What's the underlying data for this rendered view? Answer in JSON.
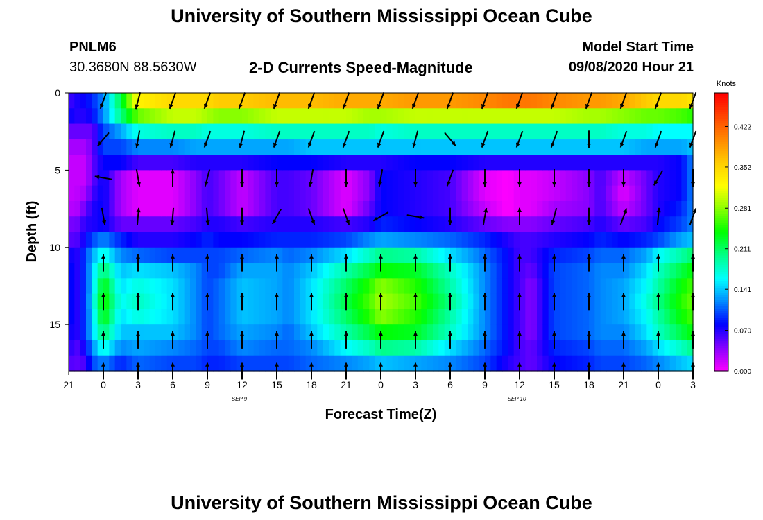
{
  "header": {
    "title": "University of Southern Mississippi Ocean Cube",
    "station_id": "PNLM6",
    "station_coords": "30.3680N 88.5630W",
    "chart_title": "2-D Currents Speed-Magnitude",
    "start_time_label": "Model Start Time",
    "start_time_value": "09/08/2020 Hour 21"
  },
  "footer": {
    "title": "University of Southern Mississippi Ocean Cube"
  },
  "chart_data": {
    "type": "heatmap",
    "xlabel": "Forecast Time(Z)",
    "ylabel": "Depth (ft)",
    "x_tick_labels": [
      "21",
      "0",
      "3",
      "6",
      "9",
      "12",
      "15",
      "18",
      "21",
      "0",
      "3",
      "6",
      "9",
      "12",
      "15",
      "18",
      "21",
      "0",
      "3"
    ],
    "date_labels": [
      {
        "label": "SEP 9",
        "at_tick_index": 5
      },
      {
        "label": "SEP 10",
        "at_tick_index": 13
      }
    ],
    "x_range_hours": [
      0,
      54
    ],
    "y_ticks": [
      0,
      5,
      10,
      15
    ],
    "ylim": [
      0,
      18
    ],
    "y_inverted": true,
    "colorbar": {
      "unit": "Knots",
      "ticks": [
        "0.000",
        "0.070",
        "0.141",
        "0.211",
        "0.281",
        "0.352",
        "0.422"
      ],
      "range": [
        0,
        0.48
      ],
      "colors": [
        "#ff00ff",
        "#8800ff",
        "#0000ff",
        "#0088ff",
        "#00ffff",
        "#00ff88",
        "#00ff00",
        "#88ff00",
        "#ffff00",
        "#ffcc00",
        "#ff8800",
        "#ff4400",
        "#ff0000"
      ]
    },
    "speed_profiles": {
      "hours": [
        0,
        0.5,
        1.5,
        2.0,
        3.0,
        4.5,
        6,
        9,
        11,
        12,
        13,
        15,
        18,
        19,
        21,
        24,
        26,
        27,
        30,
        33,
        36,
        38,
        39,
        40,
        42,
        45,
        46,
        48,
        50,
        51,
        53,
        54
      ],
      "depths": [
        0.5,
        1.5,
        2.5,
        3.5,
        4.5,
        5.5,
        6.5,
        7.5,
        8.5,
        9.5,
        10.5,
        11.5,
        12.5,
        13.5,
        14.5,
        15.5,
        16.5,
        17.5
      ],
      "columns": [
        [
          0.06,
          0.08,
          0.05,
          0.03,
          0.02,
          0.02,
          0.02,
          0.03,
          0.05,
          0.06,
          0.09,
          0.1,
          0.1,
          0.1,
          0.1,
          0.09,
          0.08,
          0.06
        ],
        [
          0.07,
          0.07,
          0.05,
          0.03,
          0.02,
          0.02,
          0.02,
          0.02,
          0.04,
          0.05,
          0.06,
          0.06,
          0.06,
          0.06,
          0.06,
          0.06,
          0.05,
          0.05
        ],
        [
          0.08,
          0.07,
          0.05,
          0.03,
          0.02,
          0.02,
          0.03,
          0.05,
          0.07,
          0.08,
          0.1,
          0.1,
          0.1,
          0.1,
          0.1,
          0.1,
          0.08,
          0.06
        ],
        [
          0.09,
          0.08,
          0.05,
          0.05,
          0.05,
          0.05,
          0.06,
          0.07,
          0.07,
          0.1,
          0.13,
          0.14,
          0.14,
          0.15,
          0.14,
          0.14,
          0.12,
          0.1
        ],
        [
          0.12,
          0.12,
          0.1,
          0.1,
          0.08,
          0.08,
          0.08,
          0.08,
          0.08,
          0.12,
          0.17,
          0.21,
          0.24,
          0.25,
          0.24,
          0.21,
          0.17,
          0.12
        ],
        [
          0.22,
          0.2,
          0.13,
          0.1,
          0.08,
          0.03,
          0.03,
          0.03,
          0.05,
          0.09,
          0.12,
          0.14,
          0.15,
          0.16,
          0.15,
          0.14,
          0.12,
          0.09
        ],
        [
          0.33,
          0.27,
          0.17,
          0.12,
          0.06,
          0.01,
          0.01,
          0.01,
          0.05,
          0.07,
          0.11,
          0.15,
          0.17,
          0.18,
          0.17,
          0.14,
          0.13,
          0.11
        ],
        [
          0.35,
          0.3,
          0.18,
          0.12,
          0.06,
          0.01,
          0.01,
          0.01,
          0.05,
          0.07,
          0.1,
          0.14,
          0.15,
          0.15,
          0.15,
          0.14,
          0.12,
          0.1
        ],
        [
          0.35,
          0.3,
          0.18,
          0.13,
          0.07,
          0.04,
          0.04,
          0.04,
          0.06,
          0.08,
          0.1,
          0.12,
          0.12,
          0.12,
          0.12,
          0.12,
          0.11,
          0.1
        ],
        [
          0.35,
          0.29,
          0.17,
          0.13,
          0.07,
          0.06,
          0.06,
          0.06,
          0.07,
          0.09,
          0.1,
          0.1,
          0.1,
          0.1,
          0.1,
          0.1,
          0.1,
          0.09
        ],
        [
          0.36,
          0.28,
          0.17,
          0.13,
          0.07,
          0.05,
          0.05,
          0.05,
          0.07,
          0.08,
          0.1,
          0.1,
          0.11,
          0.11,
          0.11,
          0.11,
          0.1,
          0.09
        ],
        [
          0.36,
          0.28,
          0.17,
          0.13,
          0.07,
          0.02,
          0.02,
          0.02,
          0.06,
          0.08,
          0.11,
          0.13,
          0.14,
          0.14,
          0.14,
          0.13,
          0.12,
          0.1
        ],
        [
          0.37,
          0.3,
          0.18,
          0.13,
          0.08,
          0.06,
          0.06,
          0.06,
          0.07,
          0.09,
          0.12,
          0.13,
          0.13,
          0.13,
          0.13,
          0.12,
          0.11,
          0.1
        ],
        [
          0.37,
          0.3,
          0.18,
          0.13,
          0.08,
          0.06,
          0.06,
          0.06,
          0.07,
          0.09,
          0.11,
          0.12,
          0.12,
          0.12,
          0.12,
          0.11,
          0.11,
          0.1
        ],
        [
          0.37,
          0.3,
          0.18,
          0.14,
          0.08,
          0.05,
          0.05,
          0.05,
          0.07,
          0.09,
          0.12,
          0.14,
          0.15,
          0.15,
          0.15,
          0.14,
          0.12,
          0.11
        ],
        [
          0.38,
          0.3,
          0.18,
          0.14,
          0.07,
          0.01,
          0.01,
          0.01,
          0.06,
          0.1,
          0.15,
          0.19,
          0.21,
          0.22,
          0.21,
          0.19,
          0.16,
          0.12
        ],
        [
          0.38,
          0.29,
          0.18,
          0.14,
          0.07,
          0.04,
          0.04,
          0.05,
          0.07,
          0.12,
          0.18,
          0.22,
          0.25,
          0.26,
          0.25,
          0.22,
          0.18,
          0.13
        ],
        [
          0.38,
          0.29,
          0.17,
          0.14,
          0.07,
          0.08,
          0.08,
          0.08,
          0.09,
          0.13,
          0.2,
          0.24,
          0.28,
          0.29,
          0.28,
          0.24,
          0.2,
          0.14
        ],
        [
          0.39,
          0.3,
          0.18,
          0.14,
          0.08,
          0.07,
          0.07,
          0.07,
          0.08,
          0.12,
          0.19,
          0.23,
          0.25,
          0.26,
          0.25,
          0.23,
          0.19,
          0.13
        ],
        [
          0.39,
          0.3,
          0.18,
          0.14,
          0.08,
          0.06,
          0.06,
          0.06,
          0.07,
          0.11,
          0.15,
          0.18,
          0.19,
          0.2,
          0.19,
          0.18,
          0.15,
          0.12
        ],
        [
          0.4,
          0.3,
          0.18,
          0.14,
          0.07,
          0.01,
          0.01,
          0.02,
          0.05,
          0.09,
          0.11,
          0.12,
          0.12,
          0.12,
          0.12,
          0.12,
          0.11,
          0.1
        ],
        [
          0.41,
          0.3,
          0.18,
          0.14,
          0.07,
          0.0,
          0.0,
          0.0,
          0.04,
          0.07,
          0.08,
          0.08,
          0.08,
          0.08,
          0.08,
          0.08,
          0.08,
          0.07
        ],
        [
          0.41,
          0.3,
          0.18,
          0.14,
          0.07,
          0.01,
          0.01,
          0.01,
          0.04,
          0.06,
          0.06,
          0.06,
          0.06,
          0.06,
          0.06,
          0.06,
          0.06,
          0.06
        ],
        [
          0.41,
          0.3,
          0.18,
          0.14,
          0.07,
          0.01,
          0.01,
          0.01,
          0.04,
          0.06,
          0.06,
          0.05,
          0.04,
          0.04,
          0.04,
          0.04,
          0.05,
          0.05
        ],
        [
          0.4,
          0.3,
          0.18,
          0.14,
          0.07,
          0.02,
          0.02,
          0.03,
          0.05,
          0.07,
          0.09,
          0.1,
          0.1,
          0.1,
          0.1,
          0.1,
          0.09,
          0.08
        ],
        [
          0.39,
          0.29,
          0.18,
          0.14,
          0.07,
          0.04,
          0.04,
          0.04,
          0.06,
          0.08,
          0.1,
          0.11,
          0.11,
          0.11,
          0.11,
          0.11,
          0.1,
          0.09
        ],
        [
          0.39,
          0.29,
          0.18,
          0.14,
          0.07,
          0.06,
          0.06,
          0.06,
          0.07,
          0.09,
          0.11,
          0.12,
          0.12,
          0.12,
          0.12,
          0.12,
          0.11,
          0.1
        ],
        [
          0.38,
          0.28,
          0.17,
          0.14,
          0.07,
          0.02,
          0.01,
          0.02,
          0.05,
          0.08,
          0.11,
          0.12,
          0.13,
          0.13,
          0.13,
          0.12,
          0.11,
          0.1
        ],
        [
          0.36,
          0.27,
          0.17,
          0.13,
          0.07,
          0.05,
          0.05,
          0.05,
          0.06,
          0.09,
          0.13,
          0.15,
          0.16,
          0.17,
          0.16,
          0.15,
          0.13,
          0.11
        ],
        [
          0.35,
          0.27,
          0.16,
          0.13,
          0.07,
          0.07,
          0.07,
          0.07,
          0.08,
          0.1,
          0.16,
          0.18,
          0.19,
          0.2,
          0.19,
          0.18,
          0.15,
          0.12
        ],
        [
          0.35,
          0.26,
          0.16,
          0.13,
          0.08,
          0.08,
          0.08,
          0.09,
          0.1,
          0.13,
          0.19,
          0.22,
          0.24,
          0.25,
          0.24,
          0.22,
          0.18,
          0.14
        ],
        [
          0.34,
          0.25,
          0.16,
          0.14,
          0.12,
          0.12,
          0.12,
          0.12,
          0.12,
          0.14,
          0.21,
          0.24,
          0.26,
          0.27,
          0.26,
          0.24,
          0.2,
          0.15
        ]
      ]
    },
    "current_vectors": {
      "hours": [
        3,
        6,
        9,
        12,
        15,
        18,
        21,
        24,
        27,
        30,
        33,
        36,
        39,
        42,
        45,
        48,
        51,
        54
      ],
      "depths": [
        0.5,
        3.0,
        5.5,
        8.0,
        11.0,
        13.5,
        16.0,
        18.0
      ],
      "direction_deg": [
        [
          200,
          195,
          200,
          200,
          200,
          200,
          200,
          200,
          200,
          200,
          200,
          200,
          200,
          200,
          200,
          200,
          200,
          200
        ],
        [
          220,
          190,
          195,
          200,
          195,
          200,
          200,
          200,
          200,
          195,
          140,
          200,
          200,
          200,
          180,
          200,
          200,
          200
        ],
        [
          280,
          170,
          0,
          195,
          180,
          180,
          190,
          180,
          190,
          180,
          200,
          180,
          180,
          180,
          180,
          180,
          210,
          180
        ],
        [
          170,
          5,
          185,
          175,
          180,
          210,
          160,
          160,
          240,
          100,
          180,
          10,
          0,
          195,
          180,
          20,
          5,
          20
        ],
        [
          0,
          0,
          0,
          0,
          0,
          0,
          0,
          0,
          0,
          0,
          0,
          0,
          0,
          0,
          0,
          0,
          0,
          0
        ],
        [
          0,
          0,
          0,
          0,
          0,
          0,
          0,
          0,
          0,
          0,
          0,
          0,
          0,
          0,
          0,
          0,
          0,
          0
        ],
        [
          0,
          0,
          0,
          0,
          0,
          0,
          0,
          0,
          0,
          0,
          0,
          0,
          0,
          0,
          0,
          0,
          0,
          0
        ],
        [
          0,
          0,
          0,
          0,
          0,
          0,
          0,
          0,
          0,
          0,
          0,
          0,
          0,
          0,
          0,
          0,
          0,
          0
        ]
      ]
    },
    "grid": false
  }
}
